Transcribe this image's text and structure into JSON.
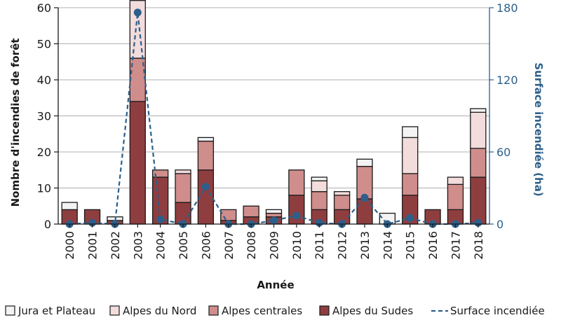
{
  "chart_data": {
    "type": "bar",
    "stacked": true,
    "categories": [
      "2000",
      "2001",
      "2002",
      "2003",
      "2004",
      "2005",
      "2006",
      "2007",
      "2008",
      "2009",
      "2010",
      "2011",
      "2012",
      "2013",
      "2014",
      "2015",
      "2016",
      "2017",
      "2018"
    ],
    "series": [
      {
        "name": "Alpes du Sudes",
        "color": "#8f3e40",
        "values": [
          4,
          4,
          1,
          34,
          13,
          6,
          15,
          1,
          2,
          2,
          8,
          4,
          4,
          7,
          0,
          8,
          4,
          4,
          13
        ]
      },
      {
        "name": "Alpes centrales",
        "color": "#cf8d8c",
        "values": [
          0,
          0,
          0,
          12,
          2,
          8,
          8,
          3,
          3,
          1,
          7,
          5,
          4,
          9,
          0,
          6,
          0,
          7,
          8
        ]
      },
      {
        "name": "Alpes du Nord",
        "color": "#f2dcdc",
        "values": [
          0,
          0,
          0,
          16,
          0,
          1,
          0,
          0,
          0,
          0,
          0,
          3,
          1,
          0,
          0,
          10,
          0,
          2,
          10
        ]
      },
      {
        "name": "Jura et Plateau",
        "color": "#f3f3f3",
        "values": [
          2,
          0,
          1,
          0,
          0,
          0,
          1,
          0,
          0,
          1,
          0,
          1,
          0,
          2,
          3,
          3,
          0,
          0,
          1
        ]
      }
    ],
    "line_series": {
      "name": "Surface incendiée",
      "color": "#2c5f8a",
      "axis": "right",
      "values": [
        0,
        1,
        0,
        176,
        4,
        0,
        31,
        0,
        0,
        3,
        7,
        1,
        0,
        22,
        0,
        5,
        0,
        0,
        1
      ]
    },
    "xlabel": "Année",
    "ylabel": "Nombre d'incendies de forêt",
    "ylabel_right": "Surface incendiée (ha)",
    "ylim": [
      0,
      60
    ],
    "yticks": [
      0,
      10,
      20,
      30,
      40,
      50,
      60
    ],
    "ylim_right": [
      0,
      180
    ],
    "yticks_right": [
      0,
      60,
      120,
      180
    ],
    "grid": true,
    "legend_position": "bottom",
    "legend": [
      "Jura et Plateau",
      "Alpes du Nord",
      "Alpes centrales",
      "Alpes du Sudes",
      "Surface incendiée"
    ]
  }
}
